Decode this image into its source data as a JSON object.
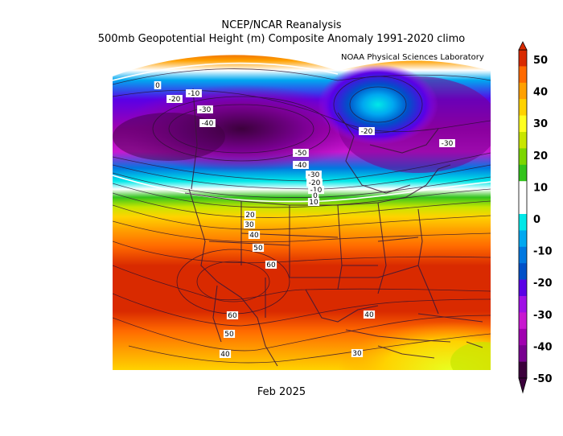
{
  "title_line1": "NCEP/NCAR Reanalysis",
  "title_line2": "500mb Geopotential Height (m) Composite Anomaly 1991-2020 climo",
  "credit": "NOAA Physical Sciences Laboratory",
  "date_label": "Feb 2025",
  "colorbar": {
    "ticks": [
      "50",
      "40",
      "30",
      "20",
      "10",
      "0",
      "-10",
      "-20",
      "-30",
      "-40",
      "-50"
    ],
    "colors": [
      "#d92a00",
      "#ff6a00",
      "#ffa000",
      "#ffd200",
      "#ffff20",
      "#c8e600",
      "#7cd600",
      "#33c31c",
      "#ffffff",
      "#ffffff",
      "#00e8e8",
      "#00a8f0",
      "#0078e0",
      "#0050c8",
      "#5a00e6",
      "#a010e6",
      "#c818d0",
      "#a000b0",
      "#780090",
      "#3c003c"
    ]
  },
  "contour_labels": [
    {
      "text": "0"
    },
    {
      "text": "-10"
    },
    {
      "text": "-20"
    },
    {
      "text": "-30"
    },
    {
      "text": "-40"
    },
    {
      "text": "-20"
    },
    {
      "text": "-30"
    },
    {
      "text": "-50"
    },
    {
      "text": "-40"
    },
    {
      "text": "-30"
    },
    {
      "text": "-20"
    },
    {
      "text": "-10"
    },
    {
      "text": "0"
    },
    {
      "text": "10"
    },
    {
      "text": "20"
    },
    {
      "text": "30"
    },
    {
      "text": "40"
    },
    {
      "text": "50"
    },
    {
      "text": "60"
    },
    {
      "text": "60"
    },
    {
      "text": "50"
    },
    {
      "text": "40"
    },
    {
      "text": "40"
    },
    {
      "text": "30"
    }
  ]
}
